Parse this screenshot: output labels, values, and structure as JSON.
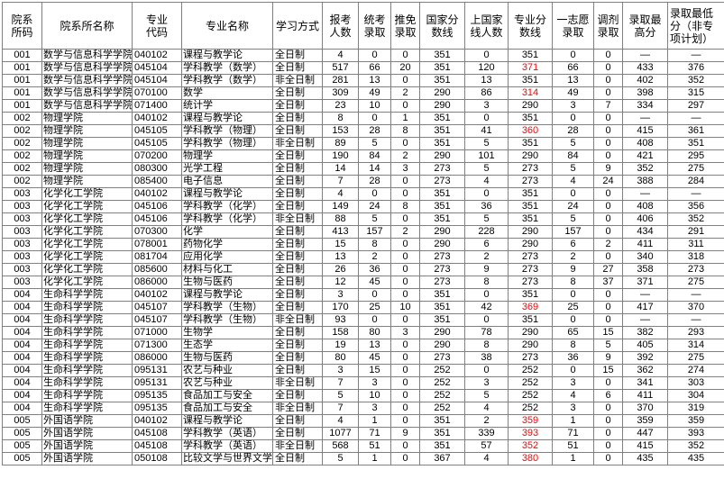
{
  "colors": {
    "highlight_red": "#ff0000",
    "grid_border": "#808080",
    "text": "#000000",
    "background": "#ffffff"
  },
  "table": {
    "headers": [
      "院系\n所码",
      "院系所名称",
      "专业\n代码",
      "专业名称",
      "学习方式",
      "报考\n人数",
      "统考\n录取",
      "推免\n录取",
      "国家分\n数线",
      "上国家\n线人数",
      "专业分\n数线",
      "一志愿\n录取",
      "调剂\n录取",
      "录取最\n高分",
      "录取最低\n分（非专\n项计划）"
    ],
    "rows": [
      [
        "001",
        "数学与信息科学学院",
        "040102",
        "课程与教学论",
        "全日制",
        "4",
        "0",
        "0",
        "351",
        "0",
        "351",
        "0",
        "0",
        "—",
        "—"
      ],
      [
        "001",
        "数学与信息科学学院",
        "045104",
        "学科教学（数学）",
        "全日制",
        "517",
        "66",
        "20",
        "351",
        "120",
        "371",
        "66",
        "0",
        "433",
        "376"
      ],
      [
        "001",
        "数学与信息科学学院",
        "045104",
        "学科教学（数学）",
        "非全日制",
        "281",
        "13",
        "0",
        "351",
        "13",
        "351",
        "13",
        "0",
        "402",
        "352"
      ],
      [
        "001",
        "数学与信息科学学院",
        "070100",
        "数学",
        "全日制",
        "309",
        "49",
        "2",
        "290",
        "86",
        "314",
        "49",
        "0",
        "398",
        "315"
      ],
      [
        "001",
        "数学与信息科学学院",
        "071400",
        "统计学",
        "全日制",
        "23",
        "10",
        "0",
        "290",
        "3",
        "290",
        "3",
        "7",
        "334",
        "297"
      ],
      [
        "002",
        "物理学院",
        "040102",
        "课程与教学论",
        "全日制",
        "8",
        "0",
        "1",
        "351",
        "0",
        "351",
        "0",
        "0",
        "—",
        "—"
      ],
      [
        "002",
        "物理学院",
        "045105",
        "学科教学（物理）",
        "全日制",
        "153",
        "28",
        "8",
        "351",
        "41",
        "360",
        "28",
        "0",
        "415",
        "361"
      ],
      [
        "002",
        "物理学院",
        "045105",
        "学科教学（物理）",
        "非全日制",
        "89",
        "5",
        "0",
        "351",
        "5",
        "351",
        "5",
        "0",
        "408",
        "351"
      ],
      [
        "002",
        "物理学院",
        "070200",
        "物理学",
        "全日制",
        "190",
        "84",
        "2",
        "290",
        "101",
        "290",
        "84",
        "0",
        "421",
        "295"
      ],
      [
        "002",
        "物理学院",
        "080300",
        "光学工程",
        "全日制",
        "14",
        "14",
        "3",
        "273",
        "5",
        "273",
        "5",
        "9",
        "352",
        "275"
      ],
      [
        "002",
        "物理学院",
        "085400",
        "电子信息",
        "全日制",
        "7",
        "28",
        "0",
        "273",
        "4",
        "273",
        "4",
        "24",
        "388",
        "284"
      ],
      [
        "003",
        "化学化工学院",
        "040102",
        "课程与教学论",
        "全日制",
        "4",
        "0",
        "0",
        "351",
        "0",
        "351",
        "0",
        "0",
        "—",
        "—"
      ],
      [
        "003",
        "化学化工学院",
        "045106",
        "学科教学（化学）",
        "全日制",
        "149",
        "24",
        "8",
        "351",
        "36",
        "351",
        "24",
        "0",
        "408",
        "356"
      ],
      [
        "003",
        "化学化工学院",
        "045106",
        "学科教学（化学）",
        "非全日制",
        "88",
        "5",
        "0",
        "351",
        "5",
        "351",
        "5",
        "0",
        "406",
        "352"
      ],
      [
        "003",
        "化学化工学院",
        "070300",
        "化学",
        "全日制",
        "413",
        "157",
        "2",
        "290",
        "228",
        "290",
        "157",
        "0",
        "434",
        "291"
      ],
      [
        "003",
        "化学化工学院",
        "078001",
        "药物化学",
        "全日制",
        "15",
        "8",
        "0",
        "290",
        "6",
        "290",
        "6",
        "2",
        "411",
        "311"
      ],
      [
        "003",
        "化学化工学院",
        "081704",
        "应用化学",
        "全日制",
        "13",
        "2",
        "0",
        "273",
        "2",
        "273",
        "2",
        "0",
        "340",
        "318"
      ],
      [
        "003",
        "化学化工学院",
        "085600",
        "材料与化工",
        "全日制",
        "26",
        "36",
        "0",
        "273",
        "9",
        "273",
        "9",
        "27",
        "358",
        "273"
      ],
      [
        "003",
        "化学化工学院",
        "086000",
        "生物与医药",
        "全日制",
        "12",
        "45",
        "0",
        "273",
        "8",
        "273",
        "8",
        "37",
        "371",
        "275"
      ],
      [
        "004",
        "生命科学学院",
        "040102",
        "课程与教学论",
        "全日制",
        "3",
        "0",
        "0",
        "351",
        "0",
        "351",
        "0",
        "0",
        "—",
        "—"
      ],
      [
        "004",
        "生命科学学院",
        "045107",
        "学科教学（生物）",
        "全日制",
        "170",
        "25",
        "10",
        "351",
        "42",
        "369",
        "25",
        "0",
        "417",
        "370"
      ],
      [
        "004",
        "生命科学学院",
        "045107",
        "学科教学（生物）",
        "非全日制",
        "93",
        "0",
        "0",
        "351",
        "0",
        "351",
        "0",
        "0",
        "—",
        "—"
      ],
      [
        "004",
        "生命科学学院",
        "071000",
        "生物学",
        "全日制",
        "158",
        "80",
        "3",
        "290",
        "78",
        "290",
        "65",
        "15",
        "382",
        "293"
      ],
      [
        "004",
        "生命科学学院",
        "071300",
        "生态学",
        "全日制",
        "19",
        "13",
        "0",
        "290",
        "8",
        "290",
        "8",
        "5",
        "405",
        "314"
      ],
      [
        "004",
        "生命科学学院",
        "086000",
        "生物与医药",
        "全日制",
        "80",
        "45",
        "0",
        "273",
        "38",
        "273",
        "36",
        "9",
        "392",
        "275"
      ],
      [
        "004",
        "生命科学学院",
        "095131",
        "农艺与种业",
        "全日制",
        "3",
        "15",
        "0",
        "252",
        "0",
        "252",
        "0",
        "15",
        "362",
        "274"
      ],
      [
        "004",
        "生命科学学院",
        "095131",
        "农艺与种业",
        "非全日制",
        "7",
        "3",
        "0",
        "252",
        "3",
        "252",
        "3",
        "0",
        "341",
        "303"
      ],
      [
        "004",
        "生命科学学院",
        "095135",
        "食品加工与安全",
        "全日制",
        "5",
        "10",
        "0",
        "252",
        "5",
        "252",
        "4",
        "6",
        "411",
        "304"
      ],
      [
        "004",
        "生命科学学院",
        "095135",
        "食品加工与安全",
        "非全日制",
        "7",
        "3",
        "0",
        "252",
        "4",
        "252",
        "3",
        "0",
        "370",
        "319"
      ],
      [
        "005",
        "外国语学院",
        "040102",
        "课程与教学论",
        "全日制",
        "4",
        "1",
        "0",
        "351",
        "2",
        "359",
        "1",
        "0",
        "359",
        "359"
      ],
      [
        "005",
        "外国语学院",
        "045108",
        "学科教学（英语）",
        "全日制",
        "1077",
        "71",
        "9",
        "351",
        "339",
        "393",
        "71",
        "0",
        "447",
        "393"
      ],
      [
        "005",
        "外国语学院",
        "045108",
        "学科教学（英语）",
        "非全日制",
        "568",
        "51",
        "0",
        "351",
        "57",
        "352",
        "51",
        "0",
        "415",
        "352"
      ],
      [
        "005",
        "外国语学院",
        "050108",
        "比较文学与世界文学",
        "全日制",
        "5",
        "1",
        "0",
        "367",
        "4",
        "380",
        "1",
        "0",
        "435",
        "435"
      ]
    ],
    "highlight_cells": [
      [
        1,
        10
      ],
      [
        3,
        10
      ],
      [
        6,
        10
      ],
      [
        20,
        10
      ],
      [
        29,
        10
      ],
      [
        30,
        10
      ],
      [
        31,
        10
      ],
      [
        32,
        10
      ]
    ]
  }
}
